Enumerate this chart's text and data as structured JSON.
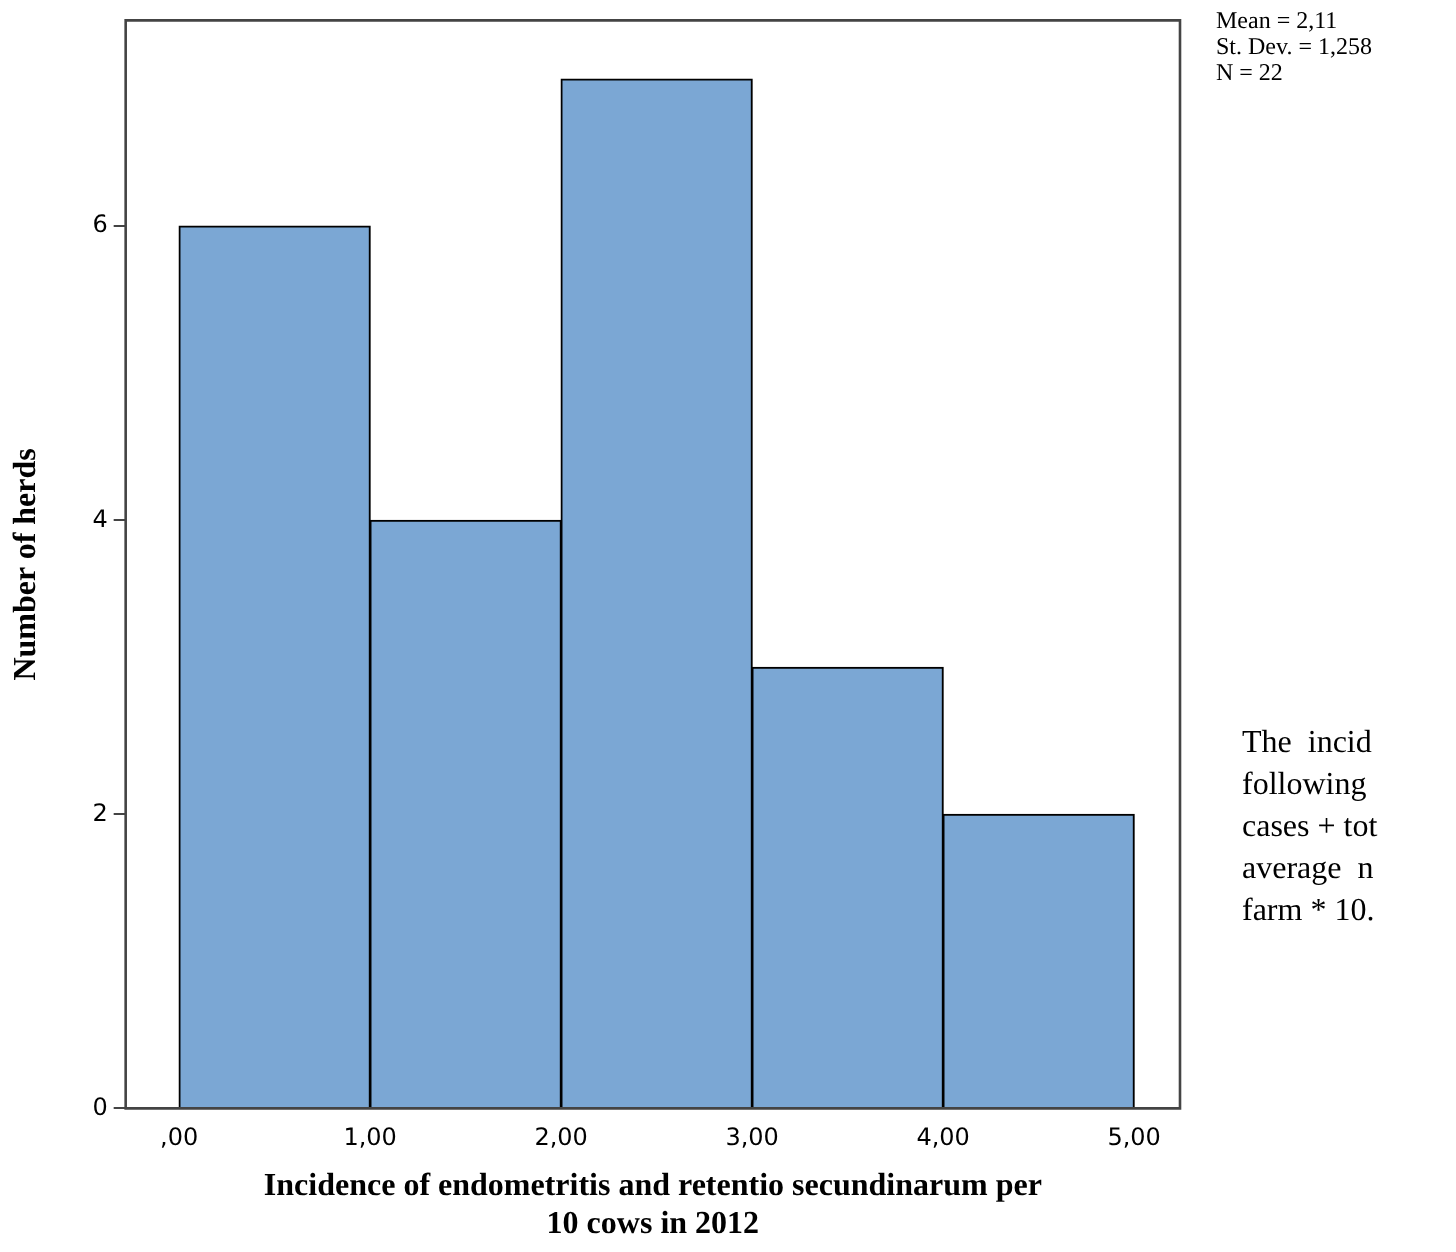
{
  "chart_data": {
    "type": "histogram",
    "xlabel": "Incidence of endometritis and retentio secundinarum per 10 cows in 2012",
    "ylabel": "Number of herds",
    "bins": [
      0,
      1,
      2,
      3,
      4,
      5
    ],
    "values": [
      6,
      4,
      7,
      3,
      2
    ],
    "color": "#7ba7d4",
    "xlim": [
      -0.28,
      5.24
    ],
    "ylim": [
      0,
      7.4
    ],
    "xticks": [
      {
        "value": 0,
        "label": ",00"
      },
      {
        "value": 1,
        "label": "1,00"
      },
      {
        "value": 2,
        "label": "2,00"
      },
      {
        "value": 3,
        "label": "3,00"
      },
      {
        "value": 4,
        "label": "4,00"
      },
      {
        "value": 5,
        "label": "5,00"
      }
    ],
    "yticks": [
      0,
      2,
      4,
      6
    ],
    "grid": false,
    "legend": false,
    "annotations": [
      "Mean = 2,11\nSt. Dev. = 1,258\nN = 22",
      "The  incid\nfollowing\ncases + tot\naverage  n\nfarm * 10."
    ]
  }
}
